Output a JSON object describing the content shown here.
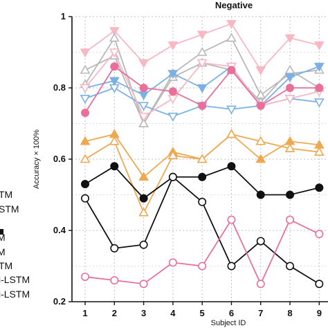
{
  "chart_data": {
    "type": "line",
    "title": "Negative",
    "xlabel": "Subject ID",
    "ylabel": "Accuracy × 100%",
    "x": [
      1,
      2,
      3,
      4,
      5,
      6,
      7,
      8,
      9
    ],
    "x_ticks": [
      "1",
      "2",
      "3",
      "4",
      "5",
      "6",
      "7",
      "8",
      "9"
    ],
    "y_ticks": [
      "0.2",
      "0.4",
      "0.6",
      "0.8",
      "1"
    ],
    "ylim": [
      0.2,
      1.0
    ],
    "grid": true,
    "legend_entries_visible": [
      "TM",
      "STM",
      "M",
      "M",
      "TM",
      "i-LSTM",
      "i-LSTM"
    ],
    "series": [
      {
        "values": [
          0.9,
          0.96,
          0.87,
          0.92,
          0.95,
          0.98,
          0.85,
          0.94,
          0.92
        ],
        "color": "#f7b8c4",
        "marker": "triangle-down",
        "filled": true
      },
      {
        "values": [
          0.81,
          0.94,
          0.7,
          0.84,
          0.9,
          0.94,
          0.78,
          0.84,
          0.85
        ],
        "color": "#b8b8b8",
        "marker": "triangle-up",
        "filled": false
      },
      {
        "values": [
          0.85,
          0.89,
          0.7,
          0.83,
          0.87,
          0.85,
          0.76,
          0.85,
          0.8
        ],
        "color": "#b8b8b8",
        "marker": "triangle-up",
        "filled": false
      },
      {
        "values": [
          0.8,
          0.82,
          0.78,
          0.84,
          0.8,
          0.86,
          0.75,
          0.83,
          0.86
        ],
        "color": "#7ab0e6",
        "marker": "triangle-down",
        "filled": true
      },
      {
        "values": [
          0.77,
          0.8,
          0.75,
          0.72,
          0.75,
          0.74,
          0.75,
          0.77,
          0.76
        ],
        "color": "#7ab0e6",
        "marker": "triangle-down",
        "filled": false
      },
      {
        "values": [
          0.8,
          0.9,
          0.72,
          0.77,
          0.87,
          0.86,
          0.75,
          0.77,
          0.79
        ],
        "color": "#f7b8c4",
        "marker": "triangle-down",
        "filled": false
      },
      {
        "values": [
          0.73,
          0.86,
          0.8,
          0.79,
          0.75,
          0.85,
          0.75,
          0.8,
          0.8
        ],
        "color": "#e8709a",
        "marker": "circle",
        "filled": true
      },
      {
        "values": [
          0.65,
          0.67,
          0.55,
          0.62,
          0.6,
          0.67,
          0.6,
          0.65,
          0.64
        ],
        "color": "#f0a850",
        "marker": "triangle-up",
        "filled": true
      },
      {
        "values": [
          0.6,
          0.65,
          0.45,
          0.61,
          0.6,
          0.67,
          0.65,
          0.63,
          0.62
        ],
        "color": "#f0a850",
        "marker": "triangle-up",
        "filled": false
      },
      {
        "values": [
          0.53,
          0.58,
          0.49,
          0.55,
          0.55,
          0.58,
          0.5,
          0.5,
          0.52
        ],
        "color": "#111111",
        "marker": "circle",
        "filled": true
      },
      {
        "values": [
          0.49,
          0.35,
          0.36,
          0.55,
          0.48,
          0.3,
          0.37,
          0.3,
          0.25
        ],
        "color": "#111111",
        "marker": "circle",
        "filled": false
      },
      {
        "values": [
          0.27,
          0.26,
          0.25,
          0.31,
          0.3,
          0.43,
          0.25,
          0.43,
          0.39
        ],
        "color": "#e8709a",
        "marker": "circle",
        "filled": false
      }
    ]
  }
}
